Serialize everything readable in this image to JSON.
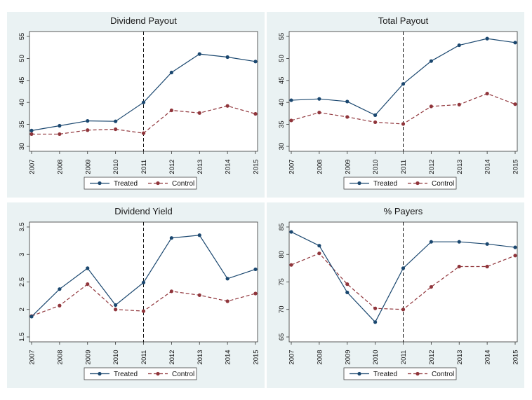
{
  "colors": {
    "treated": "#1a476f",
    "control": "#90353b",
    "panel_bg": "#eaf2f3",
    "plot_bg": "#ffffff"
  },
  "chart_data": [
    {
      "type": "line",
      "title": "Dividend Payout",
      "x": [
        "2007",
        "2008",
        "2009",
        "2010",
        "2011",
        "2012",
        "2013",
        "2014",
        "2015"
      ],
      "ylim": [
        30,
        55
      ],
      "yticks": [
        "30",
        "35",
        "40",
        "45",
        "50",
        "55"
      ],
      "vline": "2011",
      "legend": "bottom",
      "series": [
        {
          "name": "Treated",
          "values": [
            33.6,
            34.7,
            35.8,
            35.7,
            40.0,
            46.8,
            51.0,
            50.3,
            49.3
          ]
        },
        {
          "name": "Control",
          "values": [
            32.8,
            32.8,
            33.7,
            33.9,
            33.0,
            38.2,
            37.6,
            39.2,
            37.4
          ]
        }
      ]
    },
    {
      "type": "line",
      "title": "Total Payout",
      "x": [
        "2007",
        "2008",
        "2009",
        "2010",
        "2011",
        "2012",
        "2013",
        "2014",
        "2015"
      ],
      "ylim": [
        30,
        55
      ],
      "yticks": [
        "30",
        "35",
        "40",
        "45",
        "50",
        "55"
      ],
      "vline": "2011",
      "legend": "bottom",
      "series": [
        {
          "name": "Treated",
          "values": [
            40.5,
            40.8,
            40.2,
            37.1,
            44.2,
            49.4,
            53.0,
            54.5,
            53.6
          ]
        },
        {
          "name": "Control",
          "values": [
            35.9,
            37.7,
            36.7,
            35.5,
            35.1,
            39.1,
            39.5,
            42.0,
            39.6
          ]
        }
      ]
    },
    {
      "type": "line",
      "title": "Dividend Yield",
      "x": [
        "2007",
        "2008",
        "2009",
        "2010",
        "2011",
        "2012",
        "2013",
        "2014",
        "2015"
      ],
      "ylim": [
        1.5,
        3.5
      ],
      "yticks": [
        "1.5",
        "2",
        "2.5",
        "3",
        "3.5"
      ],
      "vline": "2011",
      "legend": "bottom",
      "series": [
        {
          "name": "Treated",
          "values": [
            1.87,
            2.37,
            2.75,
            2.08,
            2.49,
            3.3,
            3.35,
            2.56,
            2.73
          ]
        },
        {
          "name": "Control",
          "values": [
            1.88,
            2.07,
            2.46,
            2.0,
            1.97,
            2.33,
            2.26,
            2.15,
            2.29
          ]
        }
      ]
    },
    {
      "type": "line",
      "title": "% Payers",
      "x": [
        "2007",
        "2008",
        "2009",
        "2010",
        "2011",
        "2012",
        "2013",
        "2014",
        "2015"
      ],
      "ylim": [
        65,
        85
      ],
      "yticks": [
        "65",
        "70",
        "75",
        "80",
        "85"
      ],
      "vline": "2011",
      "legend": "bottom",
      "series": [
        {
          "name": "Treated",
          "values": [
            84.1,
            81.6,
            73.1,
            67.7,
            77.5,
            82.3,
            82.3,
            81.9,
            81.3
          ]
        },
        {
          "name": "Control",
          "values": [
            78.1,
            80.2,
            74.6,
            70.2,
            70.0,
            74.1,
            77.8,
            77.8,
            79.8
          ]
        }
      ]
    }
  ]
}
